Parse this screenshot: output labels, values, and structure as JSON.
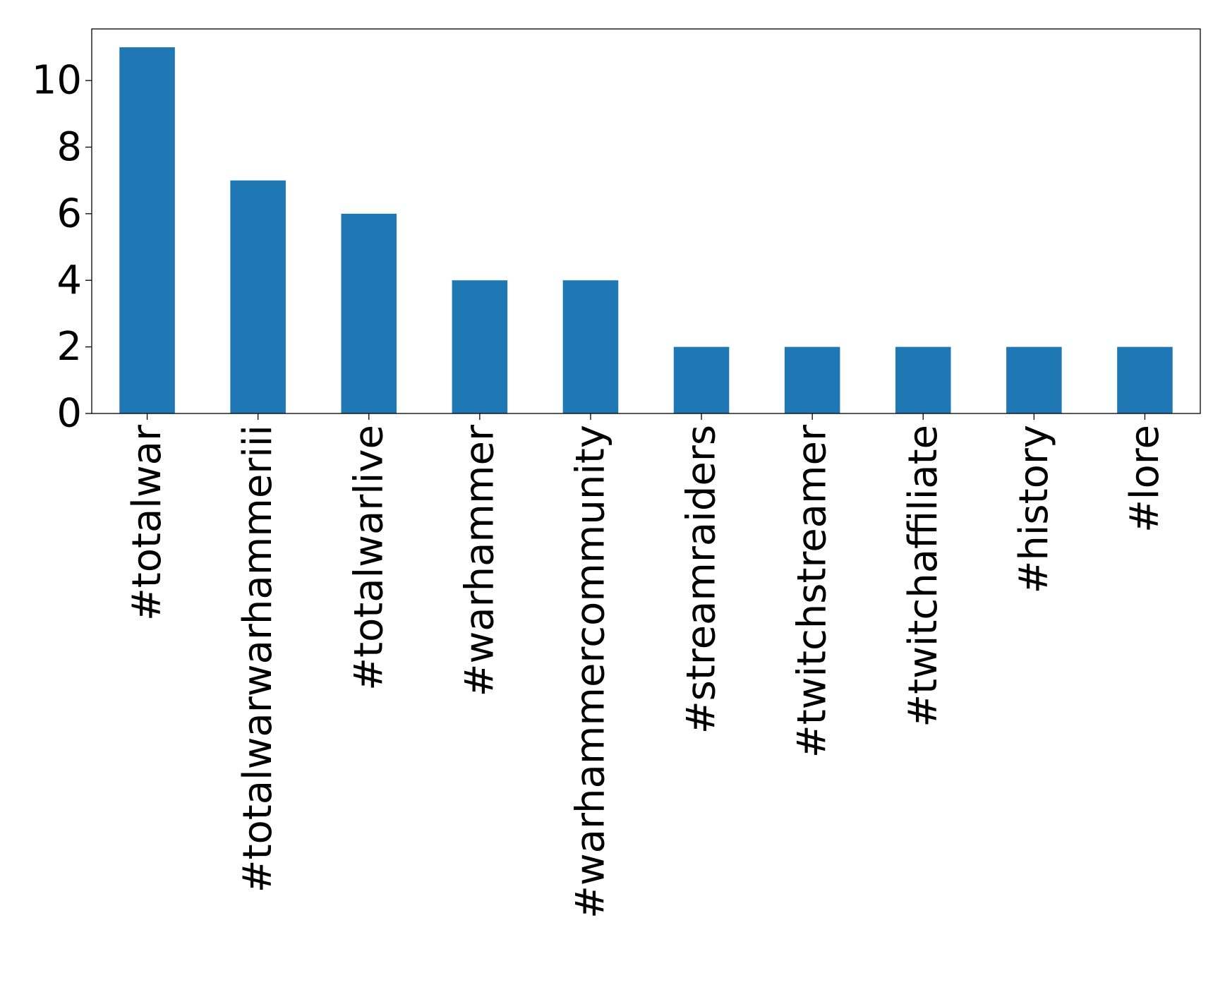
{
  "chart_data": {
    "type": "bar",
    "title": "",
    "xlabel": "",
    "ylabel": "",
    "categories": [
      "#totalwar",
      "#totalwarwarhammeriii",
      "#totalwarlive",
      "#warhammer",
      "#warhammercommunity",
      "#streamraiders",
      "#twitchstreamer",
      "#twitchaffiliate",
      "#history",
      "#lore"
    ],
    "values": [
      11,
      7,
      6,
      4,
      4,
      2,
      2,
      2,
      2,
      2
    ],
    "ylim": [
      0,
      11.55
    ],
    "yticks": [
      0,
      2,
      4,
      6,
      8,
      10
    ],
    "ytick_labels": [
      "0",
      "2",
      "4",
      "6",
      "8",
      "10"
    ],
    "bar_color": "#1f77b4",
    "grid": false,
    "legend": "none"
  }
}
